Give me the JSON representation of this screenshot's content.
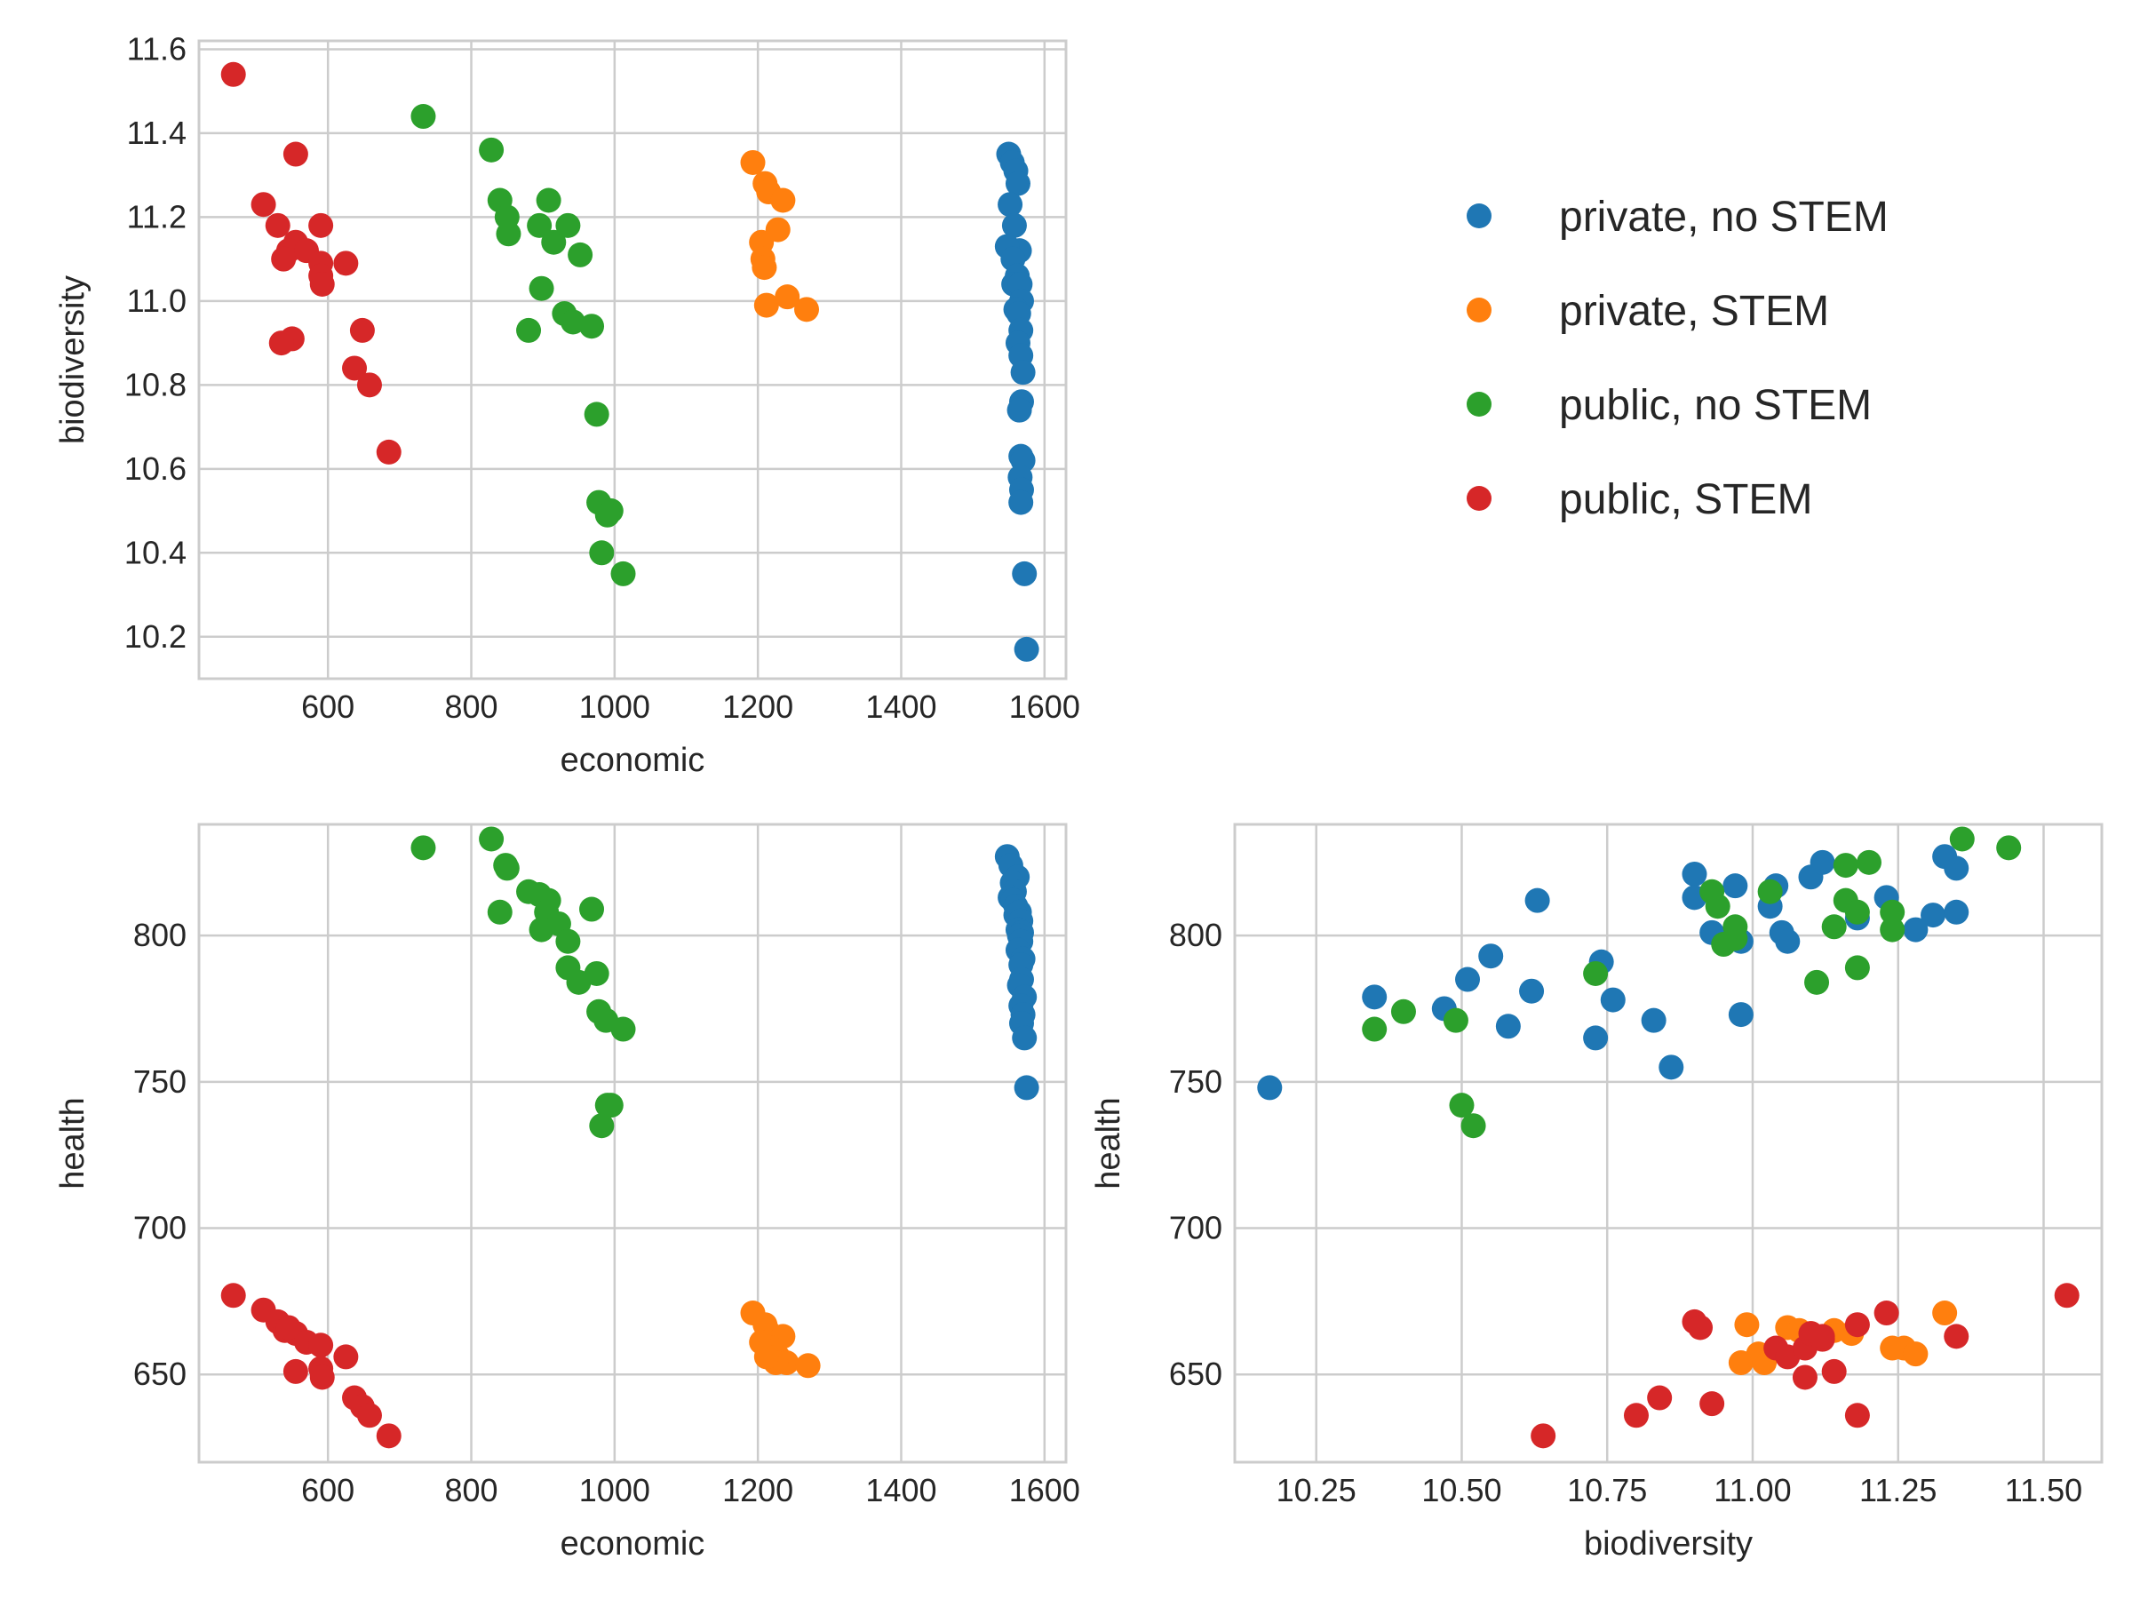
{
  "colors": {
    "private, no STEM": "#1f77b4",
    "private, STEM": "#ff7f0e",
    "public, no STEM": "#2ca02c",
    "public, STEM": "#d62728",
    "grid": "#cccccc",
    "text": "#262626"
  },
  "legend": {
    "placement": "upper-right panel",
    "entries": [
      "private, no STEM",
      "private, STEM",
      "public, no STEM",
      "public, STEM"
    ]
  },
  "chart_data": [
    {
      "type": "scatter",
      "xlabel": "economic",
      "ylabel": "biodiversity",
      "xlim": [
        420,
        1630
      ],
      "ylim": [
        10.1,
        11.62
      ],
      "xticks": [
        600,
        800,
        1000,
        1200,
        1400,
        1600
      ],
      "xtick_labels": [
        "600",
        "800",
        "1000",
        "1200",
        "1400",
        "1600"
      ],
      "yticks": [
        10.2,
        10.4,
        10.6,
        10.8,
        11.0,
        11.2,
        11.4,
        11.6
      ],
      "ytick_labels": [
        "10.2",
        "10.4",
        "10.6",
        "10.8",
        "11.0",
        "11.2",
        "11.4",
        "11.6"
      ],
      "grid": true,
      "series": [
        {
          "name": "private, no STEM",
          "x": [
            1550,
            1555,
            1560,
            1563,
            1552,
            1558,
            1565,
            1548,
            1556,
            1562,
            1557,
            1566,
            1568,
            1560,
            1564,
            1567,
            1563,
            1567,
            1570,
            1568,
            1565,
            1567,
            1570,
            1566,
            1568,
            1567,
            1572,
            1575
          ],
          "y": [
            11.35,
            11.33,
            11.31,
            11.28,
            11.23,
            11.18,
            11.12,
            11.13,
            11.1,
            11.06,
            11.04,
            11.04,
            11.0,
            10.98,
            10.97,
            10.93,
            10.9,
            10.87,
            10.83,
            10.76,
            10.74,
            10.63,
            10.62,
            10.58,
            10.55,
            10.52,
            10.35,
            10.17
          ]
        },
        {
          "name": "private, STEM",
          "x": [
            1193,
            1210,
            1215,
            1235,
            1228,
            1205,
            1207,
            1209,
            1212,
            1241,
            1268
          ],
          "y": [
            11.33,
            11.28,
            11.26,
            11.24,
            11.17,
            11.14,
            11.1,
            11.08,
            10.99,
            11.01,
            10.98
          ]
        },
        {
          "name": "public, no STEM",
          "x": [
            733,
            828,
            840,
            850,
            852,
            895,
            908,
            915,
            935,
            952,
            898,
            930,
            942,
            968,
            880,
            975,
            978,
            995,
            990,
            982,
            1012
          ],
          "y": [
            11.44,
            11.36,
            11.24,
            11.2,
            11.16,
            11.18,
            11.24,
            11.14,
            11.18,
            11.11,
            11.03,
            10.97,
            10.95,
            10.94,
            10.93,
            10.73,
            10.52,
            10.5,
            10.49,
            10.4,
            10.35
          ]
        },
        {
          "name": "public, STEM",
          "x": [
            468,
            555,
            510,
            530,
            590,
            555,
            545,
            570,
            538,
            590,
            625,
            590,
            592,
            550,
            535,
            648,
            637,
            658,
            685
          ],
          "y": [
            11.54,
            11.35,
            11.23,
            11.18,
            11.18,
            11.14,
            11.12,
            11.12,
            11.1,
            11.09,
            11.09,
            11.06,
            11.04,
            10.91,
            10.9,
            10.93,
            10.84,
            10.8,
            10.64
          ]
        }
      ]
    },
    {
      "type": "scatter",
      "xlabel": "economic",
      "ylabel": "health",
      "xlim": [
        420,
        1630
      ],
      "ylim": [
        620,
        838
      ],
      "xticks": [
        600,
        800,
        1000,
        1200,
        1400,
        1600
      ],
      "xtick_labels": [
        "600",
        "800",
        "1000",
        "1200",
        "1400",
        "1600"
      ],
      "yticks": [
        650,
        700,
        750,
        800
      ],
      "ytick_labels": [
        "650",
        "700",
        "750",
        "800"
      ],
      "grid": true,
      "series": [
        {
          "name": "private, no STEM",
          "x": [
            1548,
            1553,
            1562,
            1555,
            1558,
            1552,
            1556,
            1560,
            1565,
            1560,
            1567,
            1563,
            1568,
            1565,
            1567,
            1563,
            1570,
            1567,
            1568,
            1565,
            1572,
            1567,
            1570,
            1568,
            1572,
            1575
          ],
          "y": [
            827,
            824,
            820,
            818,
            815,
            813,
            812,
            810,
            808,
            807,
            805,
            802,
            801,
            800,
            798,
            795,
            792,
            790,
            785,
            783,
            779,
            776,
            773,
            770,
            765,
            748
          ]
        },
        {
          "name": "private, STEM",
          "x": [
            1193,
            1210,
            1213,
            1235,
            1205,
            1219,
            1215,
            1228,
            1240,
            1225,
            1212,
            1270
          ],
          "y": [
            671,
            667,
            665,
            663,
            661,
            659,
            658,
            656,
            654,
            654,
            656,
            653
          ]
        },
        {
          "name": "public, no STEM",
          "x": [
            733,
            828,
            848,
            850,
            880,
            895,
            908,
            905,
            922,
            898,
            935,
            840,
            968,
            935,
            975,
            950,
            978,
            988,
            995,
            1012,
            990,
            982
          ],
          "y": [
            830,
            833,
            824,
            823,
            815,
            814,
            812,
            808,
            804,
            802,
            798,
            808,
            809,
            789,
            787,
            784,
            774,
            771,
            742,
            768,
            742,
            735
          ]
        },
        {
          "name": "public, STEM",
          "x": [
            468,
            510,
            530,
            540,
            555,
            545,
            570,
            590,
            625,
            590,
            592,
            555,
            637,
            648,
            658,
            685
          ],
          "y": [
            677,
            672,
            668,
            665,
            664,
            666,
            661,
            660,
            656,
            652,
            649,
            651,
            642,
            639,
            636,
            629
          ]
        }
      ]
    },
    {
      "type": "scatter",
      "xlabel": "biodiversity",
      "ylabel": "health",
      "xlim": [
        10.11,
        11.6
      ],
      "ylim": [
        620,
        838
      ],
      "xticks": [
        10.25,
        10.5,
        10.75,
        11.0,
        11.25,
        11.5
      ],
      "xtick_labels": [
        "10.25",
        "10.50",
        "10.75",
        "11.00",
        "11.25",
        "11.50"
      ],
      "yticks": [
        650,
        700,
        750,
        800
      ],
      "ytick_labels": [
        "650",
        "700",
        "750",
        "800"
      ],
      "grid": true,
      "series": [
        {
          "name": "private, no STEM",
          "x": [
            10.17,
            10.35,
            10.47,
            10.51,
            10.55,
            10.58,
            10.62,
            10.63,
            10.73,
            10.74,
            10.76,
            10.83,
            10.86,
            10.9,
            10.9,
            10.93,
            10.97,
            10.98,
            10.98,
            11.03,
            11.04,
            11.05,
            11.06,
            11.1,
            11.12,
            11.18,
            11.23,
            11.28,
            11.31,
            11.33,
            11.35,
            11.35
          ],
          "y": [
            748,
            779,
            775,
            785,
            793,
            769,
            781,
            812,
            765,
            791,
            778,
            771,
            755,
            821,
            813,
            801,
            817,
            773,
            798,
            810,
            817,
            801,
            798,
            820,
            825,
            806,
            813,
            802,
            807,
            827,
            823,
            808
          ]
        },
        {
          "name": "private, STEM",
          "x": [
            10.98,
            10.99,
            11.01,
            11.02,
            11.06,
            11.08,
            11.1,
            11.14,
            11.17,
            11.24,
            11.26,
            11.28,
            11.33
          ],
          "y": [
            654,
            667,
            657,
            654,
            666,
            665,
            664,
            665,
            664,
            659,
            659,
            657,
            671
          ]
        },
        {
          "name": "public, no STEM",
          "x": [
            10.35,
            10.4,
            10.49,
            10.5,
            10.52,
            10.73,
            10.93,
            10.94,
            10.95,
            10.97,
            10.97,
            11.03,
            11.11,
            11.14,
            11.16,
            11.16,
            11.18,
            11.18,
            11.2,
            11.24,
            11.24,
            11.36,
            11.44
          ],
          "y": [
            768,
            774,
            771,
            742,
            735,
            787,
            815,
            810,
            797,
            803,
            799,
            815,
            784,
            803,
            824,
            812,
            789,
            808,
            825,
            802,
            808,
            833,
            830
          ]
        },
        {
          "name": "public, STEM",
          "x": [
            10.64,
            10.8,
            10.84,
            10.9,
            10.91,
            10.93,
            11.04,
            11.06,
            11.09,
            11.09,
            11.1,
            11.12,
            11.12,
            11.14,
            11.18,
            11.18,
            11.23,
            11.35,
            11.54
          ],
          "y": [
            629,
            636,
            642,
            668,
            666,
            640,
            659,
            656,
            659,
            649,
            664,
            662,
            663,
            651,
            636,
            667,
            671,
            663,
            677
          ]
        }
      ]
    }
  ]
}
